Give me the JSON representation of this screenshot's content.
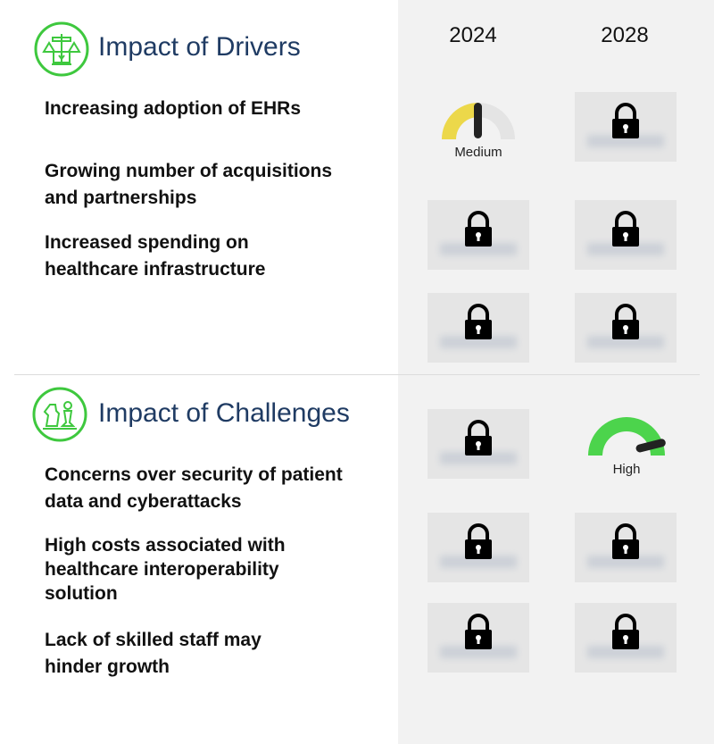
{
  "drivers": {
    "title": "Impact of Drivers",
    "items": [
      {
        "label": "Increasing adoption of EHRs"
      },
      {
        "label": "Growing number of acquisitions and partnerships"
      },
      {
        "label": "Increased spending on healthcare infrastructure"
      }
    ]
  },
  "challenges": {
    "title": "Impact of Challenges",
    "items": [
      {
        "label": "Concerns over security of patient data and cyberattacks"
      },
      {
        "label": "High costs associated with healthcare interoperability solution"
      },
      {
        "label": "Lack of skilled staff may hinder growth"
      }
    ]
  },
  "years": [
    "2024",
    "2028"
  ],
  "gauges": {
    "medium_label": "Medium",
    "high_label": "High"
  },
  "colors": {
    "accent_green": "#3ec83e",
    "title_navy": "#1f3b63",
    "medium_yellow": "#ecd84a",
    "high_green": "#4cd44c"
  },
  "icons": {
    "drivers": "balance-scale-icon",
    "challenges": "chess-pieces-icon",
    "locked": "padlock-icon"
  }
}
